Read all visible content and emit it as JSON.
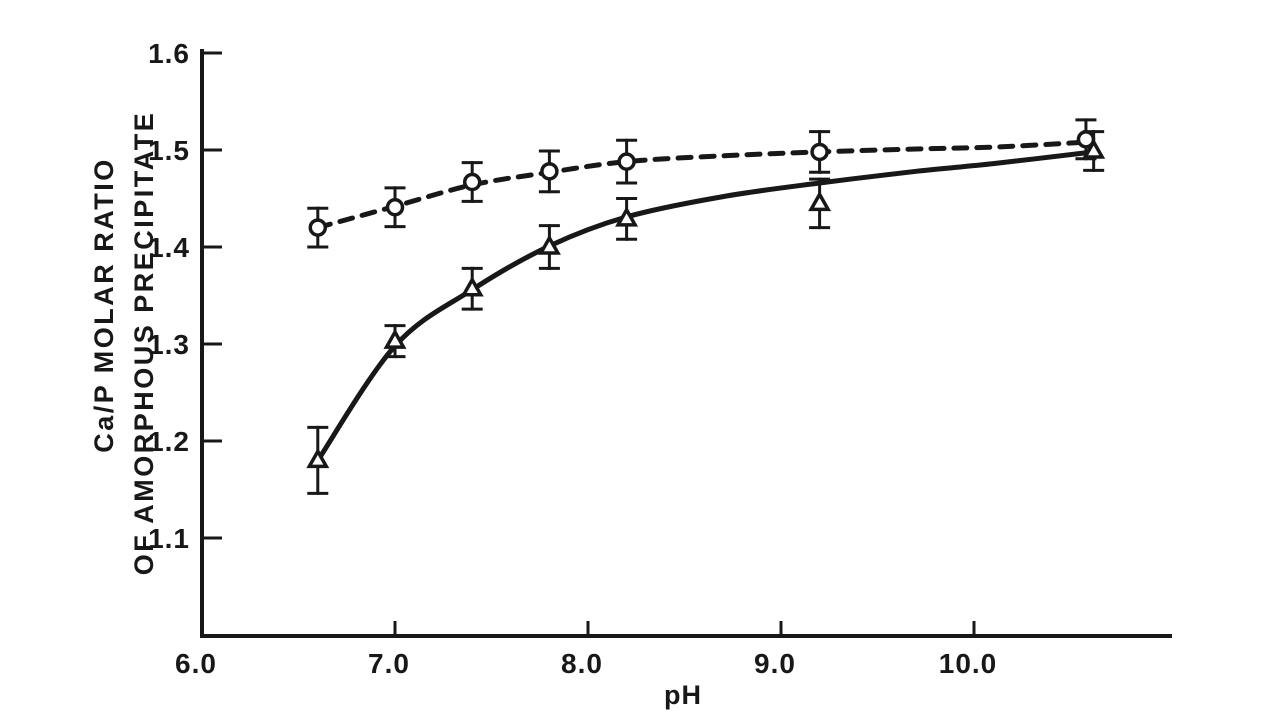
{
  "figure": {
    "background": "#ffffff",
    "ink_color": "#181818",
    "description": "Scanned scientific line chart, black ink on white, no legend, no grid"
  },
  "chart_data": {
    "type": "scatter",
    "title": "",
    "xlabel": "pH",
    "ylabel": "Ca/P MOLAR RATIO OF AMORPHOUS PRECIPITATE",
    "ylabel_line1": "Ca/P MOLAR RATIO",
    "ylabel_line2": "OF AMORPHOUS PRECIPITATE",
    "xlim": [
      6.0,
      11.05
    ],
    "ylim": [
      1.0,
      1.6
    ],
    "grid": false,
    "legend_position": "none",
    "x_ticks": [
      {
        "value": 6.0,
        "label": "6.0",
        "tick": false
      },
      {
        "value": 7.0,
        "label": "7.0",
        "tick": true
      },
      {
        "value": 8.0,
        "label": "8.0",
        "tick": true
      },
      {
        "value": 9.0,
        "label": "9.0",
        "tick": true
      },
      {
        "value": 10.0,
        "label": "10.0",
        "tick": true
      }
    ],
    "y_ticks": [
      {
        "value": 1.1,
        "label": "1.1"
      },
      {
        "value": 1.2,
        "label": "1.2"
      },
      {
        "value": 1.3,
        "label": "1.3"
      },
      {
        "value": 1.4,
        "label": "1.4"
      },
      {
        "value": 1.5,
        "label": "1.5"
      },
      {
        "value": 1.6,
        "label": "1.6"
      }
    ],
    "series": [
      {
        "name": "open-circles",
        "marker": "circle",
        "line_style": "dashed",
        "points": [
          {
            "x": 6.6,
            "y": 1.42,
            "err": 0.02
          },
          {
            "x": 7.0,
            "y": 1.441,
            "err": 0.02
          },
          {
            "x": 7.4,
            "y": 1.467,
            "err": 0.02
          },
          {
            "x": 7.8,
            "y": 1.478,
            "err": 0.021
          },
          {
            "x": 8.2,
            "y": 1.488,
            "err": 0.022
          },
          {
            "x": 9.2,
            "y": 1.498,
            "err": 0.021
          },
          {
            "x": 10.58,
            "y": 1.511,
            "err": 0.02
          }
        ],
        "curve": [
          [
            6.6,
            1.42
          ],
          [
            7.0,
            1.442
          ],
          [
            7.4,
            1.464
          ],
          [
            7.8,
            1.477
          ],
          [
            8.2,
            1.488
          ],
          [
            8.7,
            1.494
          ],
          [
            9.2,
            1.498
          ],
          [
            9.7,
            1.501
          ],
          [
            10.1,
            1.503
          ],
          [
            10.58,
            1.508
          ]
        ]
      },
      {
        "name": "open-triangles",
        "marker": "triangle",
        "line_style": "solid",
        "points": [
          {
            "x": 6.6,
            "y": 1.18,
            "err": 0.034
          },
          {
            "x": 7.0,
            "y": 1.303,
            "err": 0.016
          },
          {
            "x": 7.4,
            "y": 1.357,
            "err": 0.021
          },
          {
            "x": 7.8,
            "y": 1.4,
            "err": 0.022
          },
          {
            "x": 8.2,
            "y": 1.429,
            "err": 0.021
          },
          {
            "x": 9.2,
            "y": 1.445,
            "err": 0.025
          },
          {
            "x": 10.62,
            "y": 1.499,
            "err": 0.02
          }
        ],
        "curve": [
          [
            6.6,
            1.18
          ],
          [
            7.0,
            1.298
          ],
          [
            7.4,
            1.356
          ],
          [
            7.8,
            1.401
          ],
          [
            8.2,
            1.431
          ],
          [
            8.7,
            1.452
          ],
          [
            9.2,
            1.466
          ],
          [
            9.7,
            1.478
          ],
          [
            10.1,
            1.486
          ],
          [
            10.62,
            1.498
          ]
        ]
      }
    ]
  }
}
